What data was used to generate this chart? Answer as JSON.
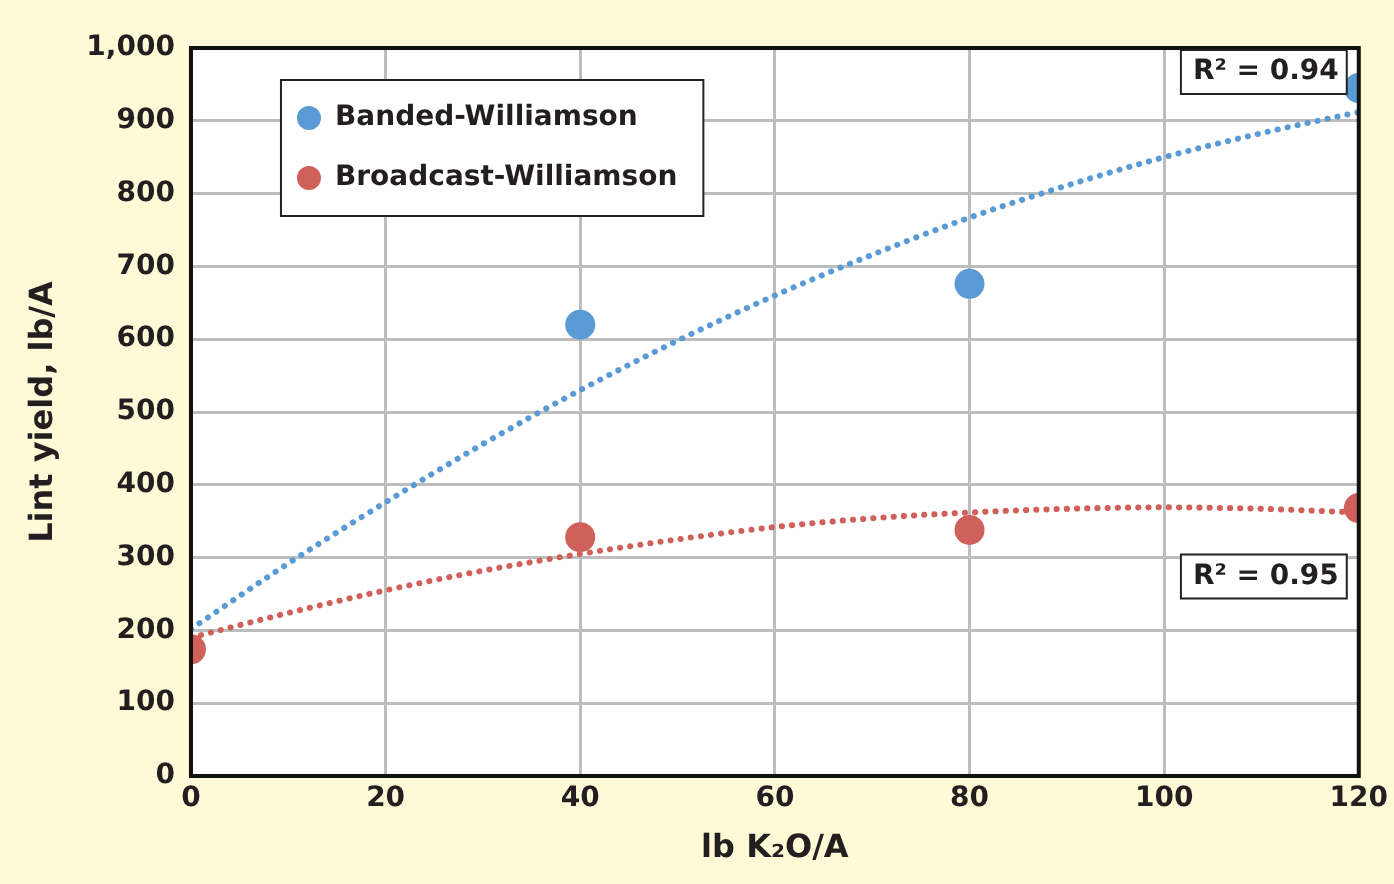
{
  "chart_data": {
    "type": "scatter",
    "xlabel": "lb K₂O/A",
    "ylabel": "Lint yield, lb/A",
    "xlim": [
      0,
      120
    ],
    "xticks": [
      0,
      20,
      40,
      60,
      80,
      100,
      120
    ],
    "ylim": [
      0,
      1000
    ],
    "yticks": [
      0,
      100,
      200,
      300,
      400,
      500,
      600,
      700,
      800,
      900,
      {
        "value": 1000,
        "label": "1,000"
      }
    ],
    "grid": true,
    "legend": "top left",
    "marker": "circle",
    "series": [
      {
        "name": "Banded-Williamson",
        "color": "#5b9bd5",
        "x": [
          40,
          80,
          120
        ],
        "values": [
          620,
          676,
          945
        ]
      },
      {
        "name": "Broadcast-Williamson",
        "color": "#d0605a",
        "x": [
          0,
          40,
          80,
          120
        ],
        "values": [
          174,
          328,
          338,
          368
        ]
      },
      {
        "type": "line",
        "line_style": "dotted",
        "marker": "none",
        "color": "#5b9bd5",
        "x": [
          0,
          10,
          20,
          30,
          40,
          50,
          60,
          70,
          80,
          90,
          100,
          110,
          120
        ],
        "values": [
          202,
          292,
          376,
          456,
          530,
          598,
          660,
          716,
          767,
          811,
          850,
          883,
          912
        ]
      },
      {
        "type": "line",
        "line_style": "dotted",
        "marker": "none",
        "color": "#d0605a",
        "x": [
          0,
          10,
          20,
          30,
          40,
          50,
          60,
          70,
          80,
          90,
          100,
          110,
          120
        ],
        "values": [
          190,
          224,
          255,
          282,
          305,
          325,
          342,
          354,
          362,
          367,
          369,
          367,
          362
        ]
      }
    ],
    "annotations": [
      "R² = 0.94",
      "R² = 0.95"
    ]
  }
}
